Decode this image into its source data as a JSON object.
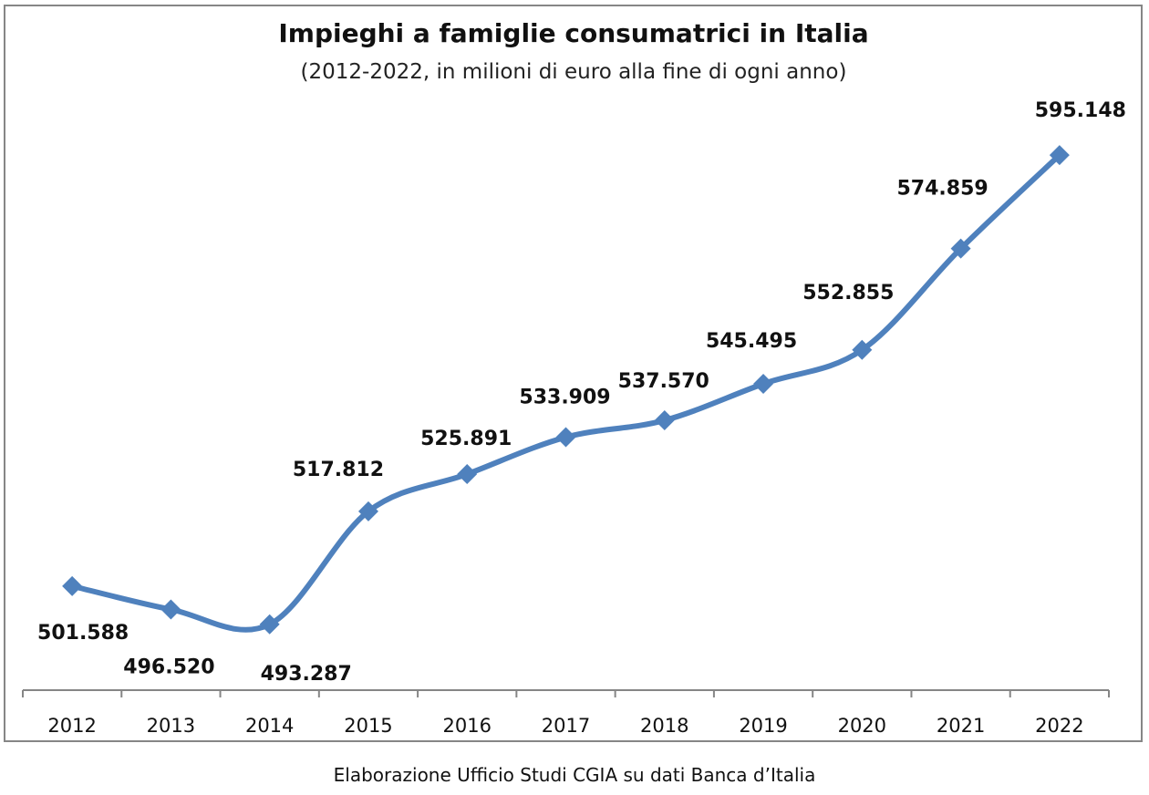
{
  "chart_data": {
    "type": "line",
    "title": "Impieghi a famiglie consumatrici in Italia",
    "subtitle": "(2012-2022, in milioni di euro alla fine di ogni anno)",
    "xlabel": "",
    "ylabel": "",
    "categories": [
      "2012",
      "2013",
      "2014",
      "2015",
      "2016",
      "2017",
      "2018",
      "2019",
      "2020",
      "2021",
      "2022"
    ],
    "series": [
      {
        "name": "Impieghi a famiglie consumatrici",
        "values": [
          501588,
          496520,
          493287,
          517812,
          525891,
          533909,
          537570,
          545495,
          552855,
          574859,
          595148
        ],
        "labels": [
          "501.588",
          "496.520",
          "493.287",
          "517.812",
          "525.891",
          "533.909",
          "537.570",
          "545.495",
          "552.855",
          "574.859",
          "595.148"
        ],
        "color": "#4F81BD",
        "marker": "diamond",
        "smooth": true
      }
    ],
    "ylim": [
      479000,
      611000
    ],
    "grid": false,
    "legend": "none",
    "y_axis_visible": false
  },
  "source_note": "Elaborazione Ufficio Studi CGIA su dati Banca d’Italia",
  "colors": {
    "line": "#4F81BD",
    "frame": "#868686",
    "axis": "#868686",
    "text": "#111111"
  }
}
